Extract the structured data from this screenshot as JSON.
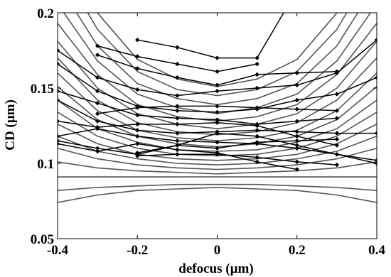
{
  "chart_data": {
    "type": "line",
    "title": "",
    "xlabel": "defocus (µm)",
    "ylabel": "CD (µm)",
    "xlim": [
      -0.4,
      0.4
    ],
    "ylim": [
      0.05,
      0.2
    ],
    "xticks": [
      -0.4,
      -0.2,
      0,
      0.2,
      0.4
    ],
    "xtick_labels": [
      "-0.4",
      "-0.2",
      "0",
      "0.2",
      "0.4"
    ],
    "yticks": [
      0.05,
      0.1,
      0.15,
      0.2
    ],
    "ytick_labels": [
      "0.05",
      "0.1",
      "0.15",
      "0.2"
    ],
    "grid": false,
    "colors": {
      "simulated": "#555555",
      "measured": "#000000"
    },
    "simulated_x": [
      -0.4,
      -0.3,
      -0.2,
      -0.1,
      0,
      0.1,
      0.2,
      0.3,
      0.4
    ],
    "simulated_series": [
      [
        0.074,
        0.079,
        0.082,
        0.083,
        0.084,
        0.083,
        0.082,
        0.079,
        0.074
      ],
      [
        0.082,
        0.084,
        0.085,
        0.086,
        0.086,
        0.086,
        0.085,
        0.084,
        0.082
      ],
      [
        0.091,
        0.091,
        0.091,
        0.091,
        0.091,
        0.091,
        0.091,
        0.091,
        0.091
      ],
      [
        0.101,
        0.097,
        0.095,
        0.094,
        0.093,
        0.094,
        0.095,
        0.097,
        0.101
      ],
      [
        0.11,
        0.103,
        0.099,
        0.097,
        0.096,
        0.097,
        0.099,
        0.103,
        0.11
      ],
      [
        0.118,
        0.108,
        0.103,
        0.1,
        0.099,
        0.1,
        0.103,
        0.108,
        0.118
      ],
      [
        0.126,
        0.113,
        0.106,
        0.103,
        0.102,
        0.103,
        0.106,
        0.113,
        0.126
      ],
      [
        0.134,
        0.118,
        0.11,
        0.106,
        0.105,
        0.106,
        0.11,
        0.118,
        0.134
      ],
      [
        0.142,
        0.123,
        0.114,
        0.109,
        0.108,
        0.109,
        0.114,
        0.123,
        0.142
      ],
      [
        0.151,
        0.129,
        0.118,
        0.113,
        0.111,
        0.113,
        0.118,
        0.129,
        0.151
      ],
      [
        0.16,
        0.135,
        0.122,
        0.117,
        0.115,
        0.117,
        0.122,
        0.135,
        0.16
      ],
      [
        0.17,
        0.142,
        0.127,
        0.121,
        0.119,
        0.121,
        0.127,
        0.142,
        0.17
      ],
      [
        0.181,
        0.15,
        0.133,
        0.126,
        0.123,
        0.126,
        0.133,
        0.15,
        0.181
      ],
      [
        0.193,
        0.159,
        0.139,
        0.131,
        0.128,
        0.131,
        0.139,
        0.159,
        0.193
      ],
      [
        0.206,
        0.168,
        0.146,
        0.137,
        0.133,
        0.137,
        0.146,
        0.168,
        0.206
      ],
      [
        0.22,
        0.178,
        0.153,
        0.143,
        0.139,
        0.143,
        0.153,
        0.178,
        0.22
      ],
      [
        0.234,
        0.189,
        0.161,
        0.149,
        0.145,
        0.149,
        0.161,
        0.189,
        0.234
      ],
      [
        0.25,
        0.2,
        0.169,
        0.156,
        0.151,
        0.156,
        0.169,
        0.2,
        0.25
      ]
    ],
    "measured_series": [
      {
        "x": [
          -0.2,
          -0.1,
          0,
          0.1,
          0.2
        ],
        "y": [
          0.182,
          0.177,
          0.17,
          0.17,
          0.215
        ]
      },
      {
        "x": [
          -0.3,
          -0.2,
          -0.1,
          0,
          0.1
        ],
        "y": [
          0.178,
          0.171,
          0.166,
          0.161,
          0.166
        ]
      },
      {
        "x": [
          -0.4,
          -0.3,
          -0.2,
          -0.1,
          0,
          0.1,
          0.2,
          0.3,
          0.4
        ],
        "y": [
          0.175,
          0.157,
          0.149,
          0.145,
          0.148,
          0.15,
          0.152,
          0.16,
          0.182
        ]
      },
      {
        "x": [
          -0.3,
          -0.2,
          -0.1,
          0,
          0.1,
          0.2,
          0.3
        ],
        "y": [
          0.172,
          0.163,
          0.157,
          0.152,
          0.159,
          0.16,
          0.161
        ]
      },
      {
        "x": [
          -0.4,
          -0.3,
          -0.2,
          -0.1,
          0,
          0.1,
          0.2,
          0.3,
          0.4
        ],
        "y": [
          0.166,
          0.148,
          0.138,
          0.135,
          0.134,
          0.136,
          0.142,
          0.146,
          0.157
        ]
      },
      {
        "x": [
          -0.3,
          -0.2,
          -0.1,
          0,
          0.1,
          0.2,
          0.3
        ],
        "y": [
          0.133,
          0.137,
          0.138,
          0.138,
          0.137,
          0.136,
          0.135
        ]
      },
      {
        "x": [
          -0.4,
          -0.3,
          -0.2,
          -0.1,
          0,
          0.1,
          0.2,
          0.3
        ],
        "y": [
          0.148,
          0.14,
          0.132,
          0.13,
          0.129,
          0.126,
          0.128,
          0.13
        ]
      },
      {
        "x": [
          -0.4,
          -0.3,
          -0.2,
          -0.1,
          0,
          0.1,
          0.2,
          0.3,
          0.4
        ],
        "y": [
          0.142,
          0.128,
          0.122,
          0.12,
          0.121,
          0.122,
          0.121,
          0.12,
          0.12
        ]
      },
      {
        "x": [
          -0.4,
          -0.3,
          -0.2,
          -0.1,
          0,
          0.1,
          0.2,
          0.3
        ],
        "y": [
          0.128,
          0.124,
          0.126,
          0.126,
          0.127,
          0.125,
          0.118,
          0.112
        ]
      },
      {
        "x": [
          -0.4,
          -0.3,
          -0.2,
          -0.1,
          0,
          0.1,
          0.2,
          0.3,
          0.4
        ],
        "y": [
          0.118,
          0.123,
          0.118,
          0.115,
          0.114,
          0.113,
          0.11,
          0.106,
          0.102
        ]
      },
      {
        "x": [
          -0.4,
          -0.3,
          -0.2,
          -0.1,
          0,
          0.1,
          0.2,
          0.3
        ],
        "y": [
          0.115,
          0.11,
          0.106,
          0.112,
          0.11,
          0.114,
          0.115,
          0.116
        ]
      },
      {
        "x": [
          -0.4,
          -0.3,
          -0.2,
          -0.1,
          0,
          0.1,
          0.2
        ],
        "y": [
          0.113,
          0.108,
          0.113,
          0.109,
          0.107,
          0.101,
          0.096
        ]
      },
      {
        "x": [
          -0.2,
          -0.1,
          0,
          0.1,
          0.2,
          0.3
        ],
        "y": [
          0.105,
          0.106,
          0.106,
          0.104,
          0.101,
          0.099
        ]
      },
      {
        "x": [
          -0.2,
          -0.1,
          0,
          0.1,
          0.2,
          0.3,
          0.4
        ],
        "y": [
          0.107,
          0.112,
          0.12,
          0.118,
          0.112,
          0.106,
          0.1
        ]
      }
    ]
  }
}
